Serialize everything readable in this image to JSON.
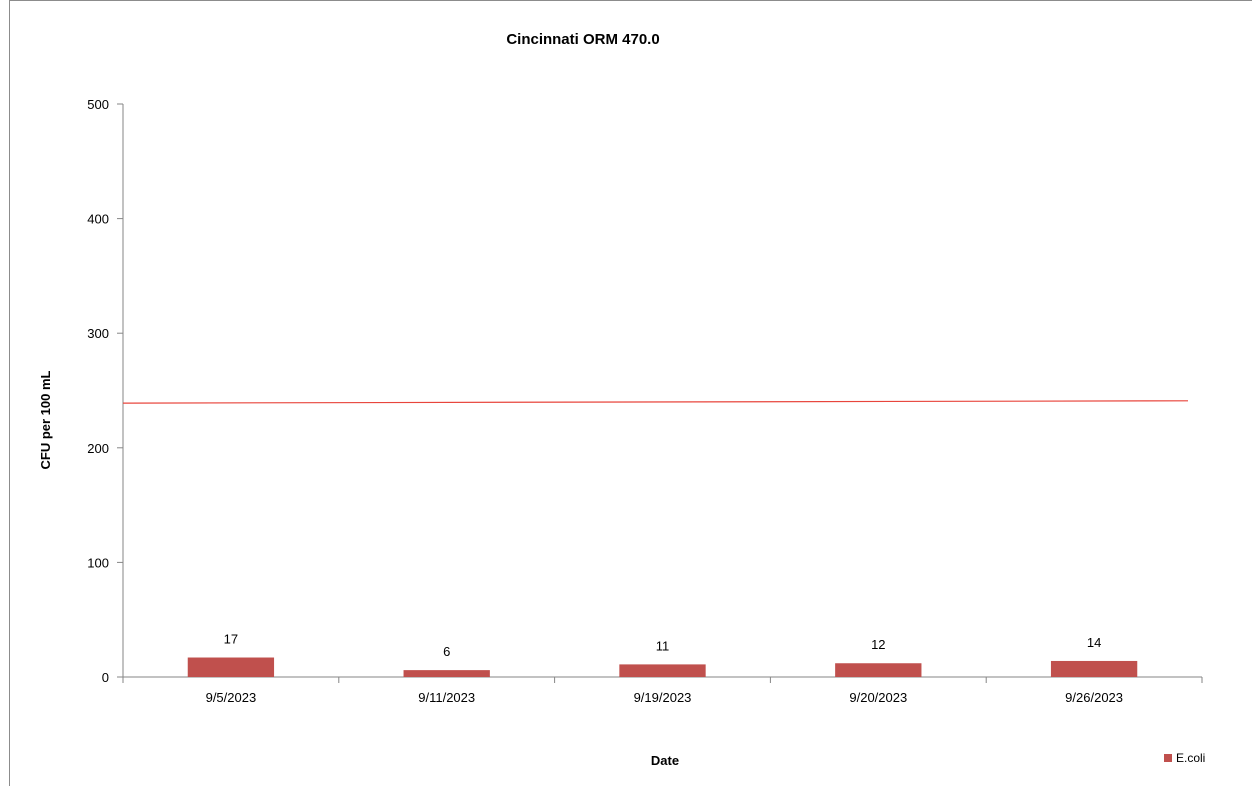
{
  "chart_data": {
    "type": "bar",
    "title": "Cincinnati ORM 470.0",
    "xlabel": "Date",
    "ylabel": "CFU per 100 mL",
    "ylim": [
      0,
      500
    ],
    "yticks": [
      0,
      100,
      200,
      300,
      400,
      500
    ],
    "categories": [
      "9/5/2023",
      "9/11/2023",
      "9/19/2023",
      "9/20/2023",
      "9/26/2023"
    ],
    "series": [
      {
        "name": "E.coli",
        "values": [
          17,
          6,
          11,
          12,
          14
        ],
        "color": "#c0504d"
      }
    ],
    "reference_line": {
      "start": 239,
      "end": 241,
      "color": "#e8453c"
    },
    "legend_position": "bottom-right",
    "grid": false
  }
}
